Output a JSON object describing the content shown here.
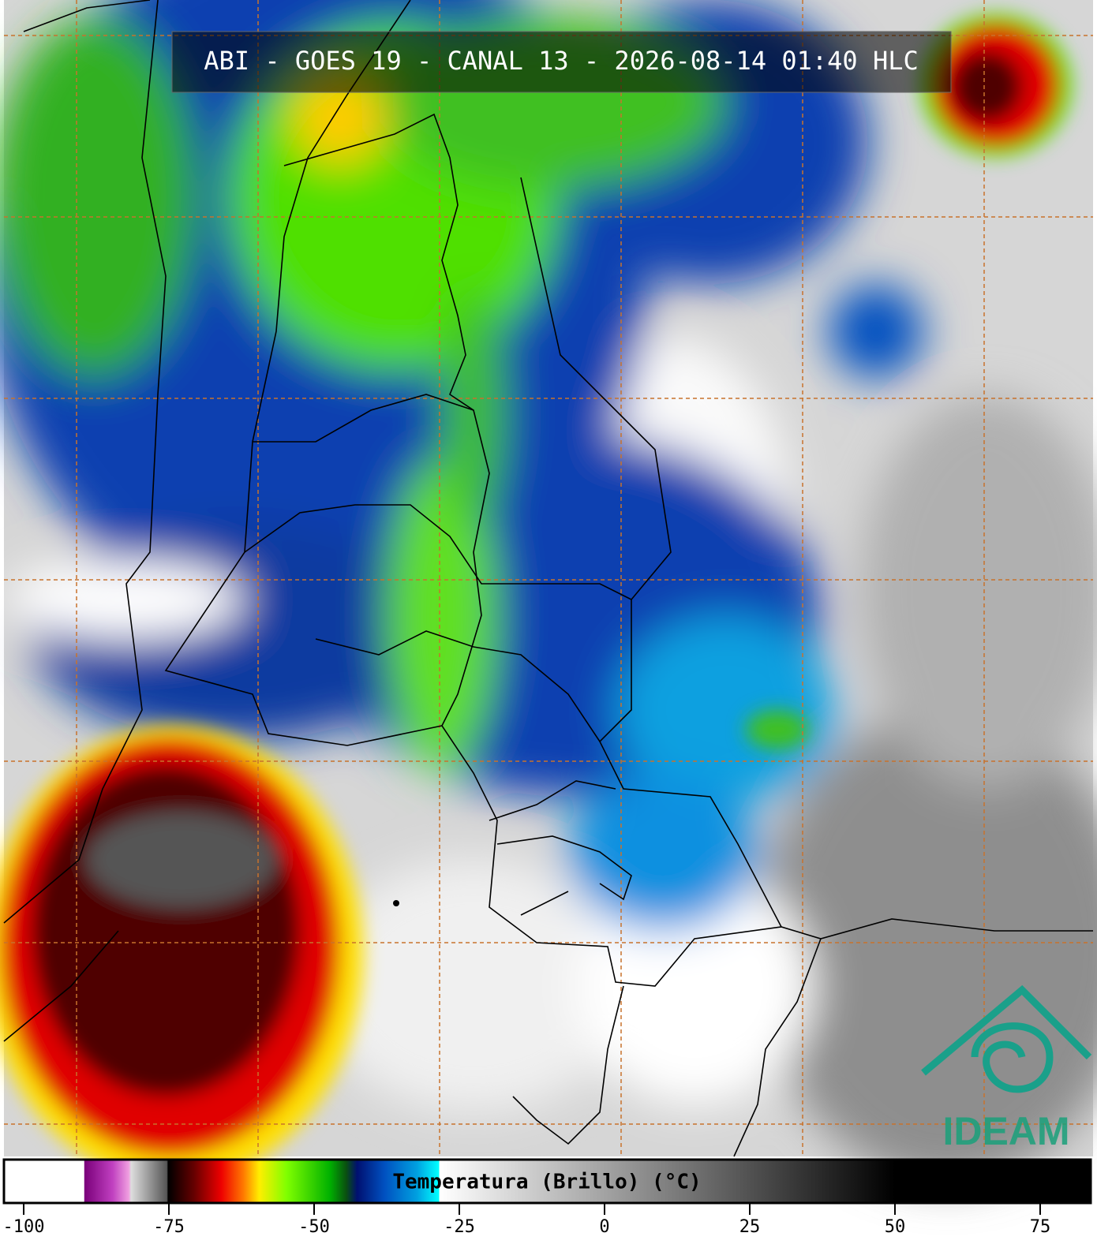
{
  "header": {
    "title": "ABI - GOES 19 - CANAL 13 - 2026-08-14 01:40 HLC"
  },
  "logo": {
    "text": "IDEAM"
  },
  "colorbar": {
    "label": "Temperatura (Brillo) (°C)",
    "range": [
      -103.4,
      83.7
    ],
    "ticks": [
      -100,
      -75,
      -50,
      -25,
      0,
      25,
      50,
      75
    ]
  }
}
